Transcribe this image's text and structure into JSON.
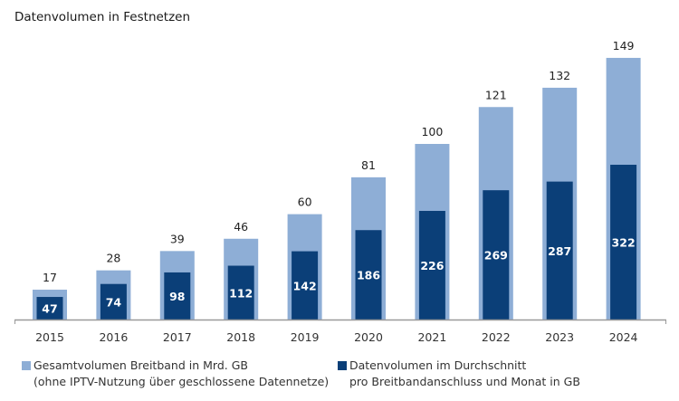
{
  "chart_data": {
    "type": "bar",
    "title": "Datenvolumen in Festnetzen",
    "categories": [
      "2015",
      "2016",
      "2017",
      "2018",
      "2019",
      "2020",
      "2021",
      "2022",
      "2023",
      "2024"
    ],
    "series": [
      {
        "name": "Gesamtvolumen Breitband in Mrd. GB\n(ohne IPTV-Nutzung über geschlossene Datennetze)",
        "name_line1": "Gesamtvolumen Breitband in Mrd. GB",
        "name_line2": "(ohne IPTV-Nutzung über geschlossene Datennetze)",
        "color": "#8eaed6",
        "values": [
          17,
          28,
          39,
          46,
          60,
          81,
          100,
          121,
          132,
          149
        ]
      },
      {
        "name": "Datenvolumen im Durchschnitt\npro Breitbandanschluss und Monat in GB",
        "name_line1": "Datenvolumen im Durchschnitt",
        "name_line2": "pro Breitbandanschluss und Monat in GB",
        "color": "#0b3f78",
        "values": [
          47,
          74,
          98,
          112,
          142,
          186,
          226,
          269,
          287,
          322
        ]
      }
    ],
    "xlabel": "",
    "ylabel": "",
    "grid": false,
    "legend": "bottom"
  }
}
